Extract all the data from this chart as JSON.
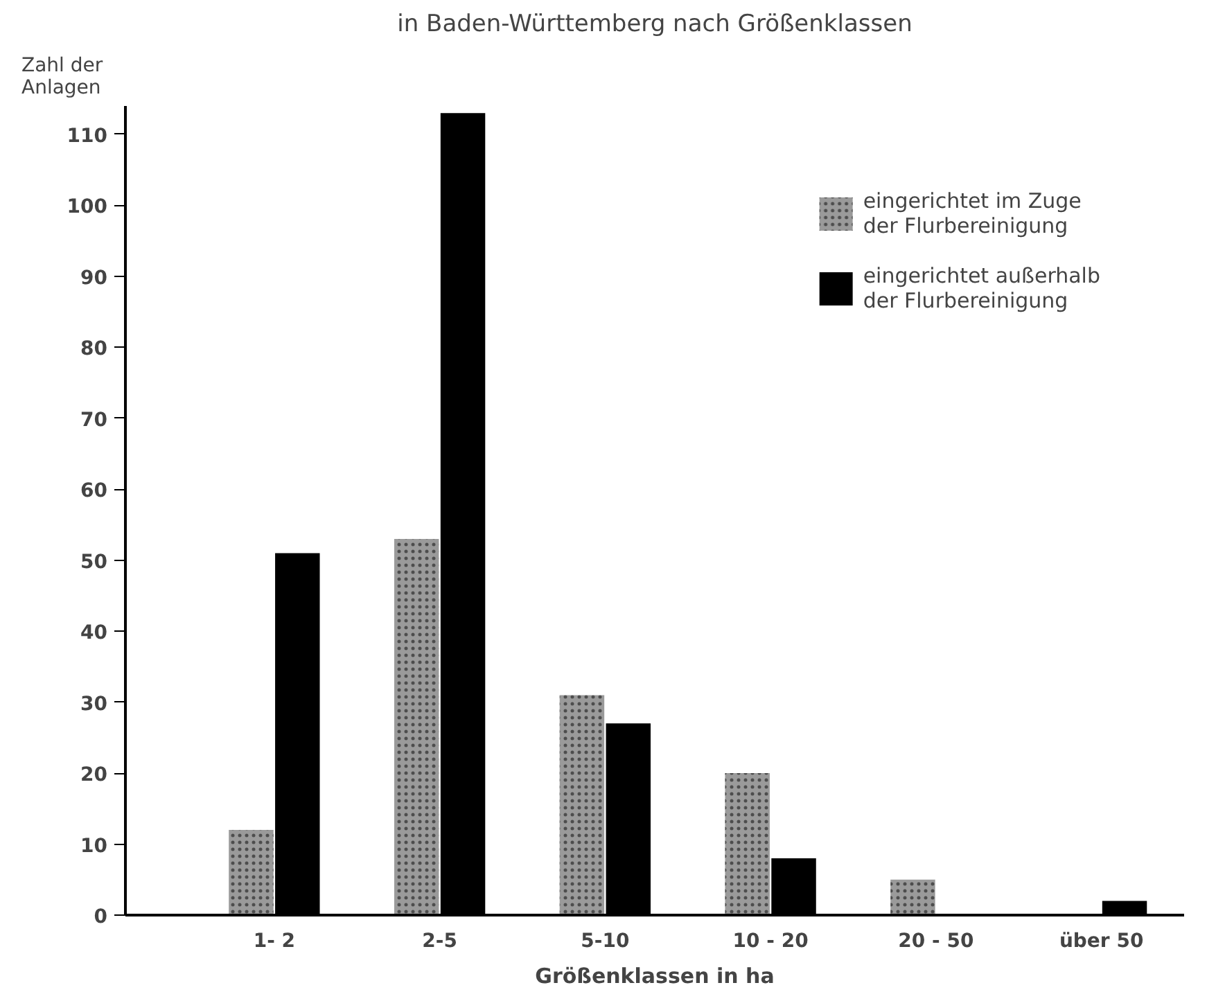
{
  "chart_data": {
    "type": "bar",
    "title": "in Baden-Württemberg nach Größenklassen",
    "ylabel": "Zahl der\nAnlagen",
    "xlabel": "Größenklassen in ha",
    "categories": [
      "1- 2",
      "2-5",
      "5-10",
      "10 - 20",
      "20 - 50",
      "über 50"
    ],
    "series": [
      {
        "name": "eingerichtet im Zuge\nder Flurbereinigung",
        "color": "#9a9a9a",
        "values": [
          12,
          53,
          31,
          20,
          5,
          null
        ]
      },
      {
        "name": "eingerichtet außerhalb\nder Flurbereinigung",
        "color": "#000000",
        "values": [
          51,
          113,
          27,
          8,
          null,
          2
        ]
      }
    ],
    "ylim": [
      0,
      114
    ],
    "yticks": [
      0,
      10,
      20,
      30,
      40,
      50,
      60,
      70,
      80,
      90,
      100,
      110
    ],
    "grid": false,
    "legend": "top right"
  }
}
